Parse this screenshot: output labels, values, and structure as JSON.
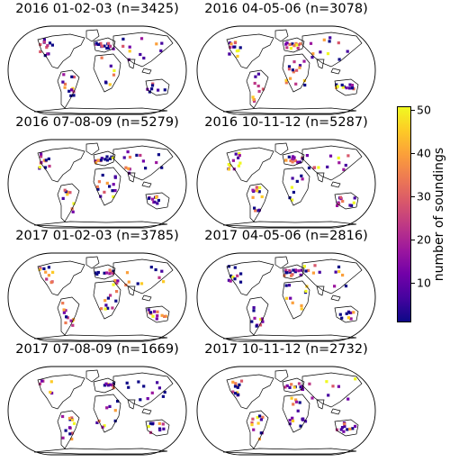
{
  "chart_data": {
    "type": "heatmap",
    "description_of_layout": "grid",
    "panels": [
      {
        "title": "2016 01-02-03 (n=3425)"
      },
      {
        "title": "2016 04-05-06 (n=3078)"
      },
      {
        "title": "2016 07-08-09 (n=5279)"
      },
      {
        "title": "2016 10-11-12 (n=5287)"
      },
      {
        "title": "2017 01-02-03 (n=3785)"
      },
      {
        "title": "2017 04-05-06 (n=2816)"
      },
      {
        "title": "2017 07-08-09 (n=1669)"
      },
      {
        "title": "2017 10-11-12 (n=2732)"
      }
    ],
    "colorbar": {
      "label": "number of soundings",
      "colormap": "plasma",
      "range": [
        1,
        50
      ],
      "ticks": [
        "10",
        "20",
        "30",
        "40",
        "50"
      ]
    }
  },
  "colors": {
    "plasma": [
      "#0d0887",
      "#46039f",
      "#7201a8",
      "#9c179e",
      "#bd3786",
      "#d8576b",
      "#ed7953",
      "#fb9f3a",
      "#fdca26",
      "#f0f921"
    ]
  }
}
